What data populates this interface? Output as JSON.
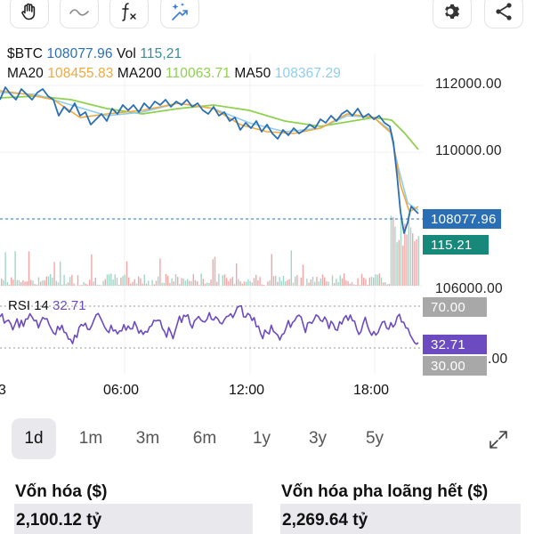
{
  "toolbar": {
    "left_tools": [
      "hand-icon",
      "curve-icon",
      "function-icon",
      "magic-icon"
    ],
    "right_tools": [
      "gear-icon",
      "share-icon"
    ]
  },
  "legend": {
    "symbol": "$BTC",
    "price": "108077.96",
    "vol_label": "Vol",
    "vol_value": "115,21",
    "ma20_label": "MA20",
    "ma20_value": "108455.83",
    "ma200_label": "MA200",
    "ma200_value": "110063.71",
    "ma50_label": "MA50",
    "ma50_value": "108367.29"
  },
  "price_axis": {
    "ticks": [
      "112000.00",
      "110000.00",
      "106000.00",
      ".00"
    ],
    "current_price": "108077.96",
    "current_volume": "115.21"
  },
  "rsi": {
    "label": "RSI 14",
    "value": "32.71",
    "upper_label": "70.00",
    "lower_label": "30.00"
  },
  "time_axis": {
    "labels": [
      "3",
      "06:00",
      "12:00",
      "18:00"
    ]
  },
  "ranges": {
    "options": [
      "1d",
      "1m",
      "3m",
      "6m",
      "1y",
      "3y",
      "5y"
    ],
    "selected": "1d"
  },
  "stats": {
    "market_cap_label": "Vốn hóa ($)",
    "market_cap_value": "2,100.12 tỷ",
    "diluted_cap_label": "Vốn hóa pha loãng hết ($)",
    "diluted_cap_value": "2,269.64 tỷ"
  },
  "colors": {
    "price_line": "#2a6fb5",
    "ma20": "#f2a93b",
    "ma50": "#8fcdf0",
    "ma200": "#8fd14f",
    "rsi_line": "#6c4bc0",
    "volume_badge": "#17897a",
    "price_badge": "#2a6fb5",
    "rsi_level_badge": "#a8a8a8"
  }
}
